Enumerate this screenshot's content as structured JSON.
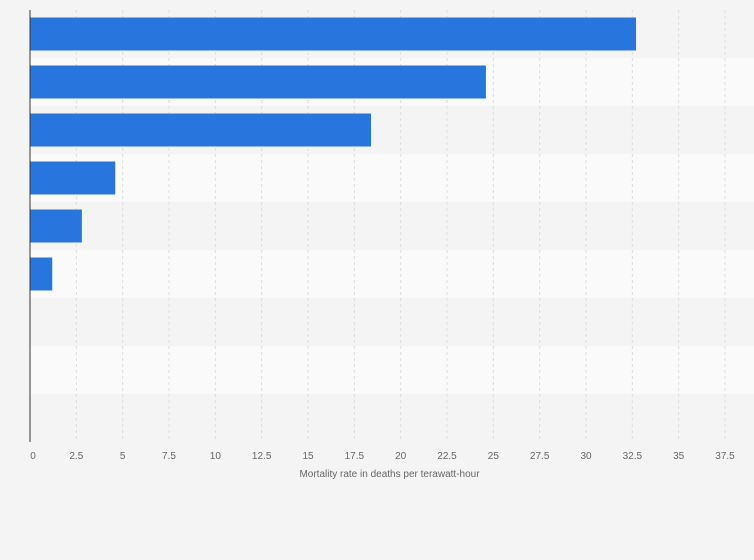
{
  "chart_data": {
    "type": "bar",
    "orientation": "horizontal",
    "categories": [
      "",
      "",
      "",
      "",
      "",
      "",
      "",
      "",
      ""
    ],
    "values": [
      32.7,
      24.6,
      18.4,
      4.6,
      2.8,
      1.2,
      0,
      0,
      0
    ],
    "xlabel": "Mortality rate in deaths per terawatt-hour",
    "xlim": [
      0,
      37.5
    ],
    "xticks": [
      0,
      2.5,
      5,
      7.5,
      10,
      12.5,
      15,
      17.5,
      20,
      22.5,
      25,
      27.5,
      30,
      32.5,
      35,
      37.5
    ],
    "xtick_labels": [
      "0",
      "2.5",
      "5",
      "7.5",
      "10",
      "12.5",
      "15",
      "17.5",
      "20",
      "22.5",
      "25",
      "27.5",
      "30",
      "32.5",
      "35",
      "37.5"
    ],
    "grid": "vertical-dashed",
    "legend": "none",
    "colors": {
      "bar": "#2876dd",
      "background": "#f4f4f4",
      "band_light": "#fafafa",
      "band_dark": "#f4f4f4",
      "grid": "#dcdcdc",
      "axis": "#333333",
      "text": "#666666"
    }
  }
}
